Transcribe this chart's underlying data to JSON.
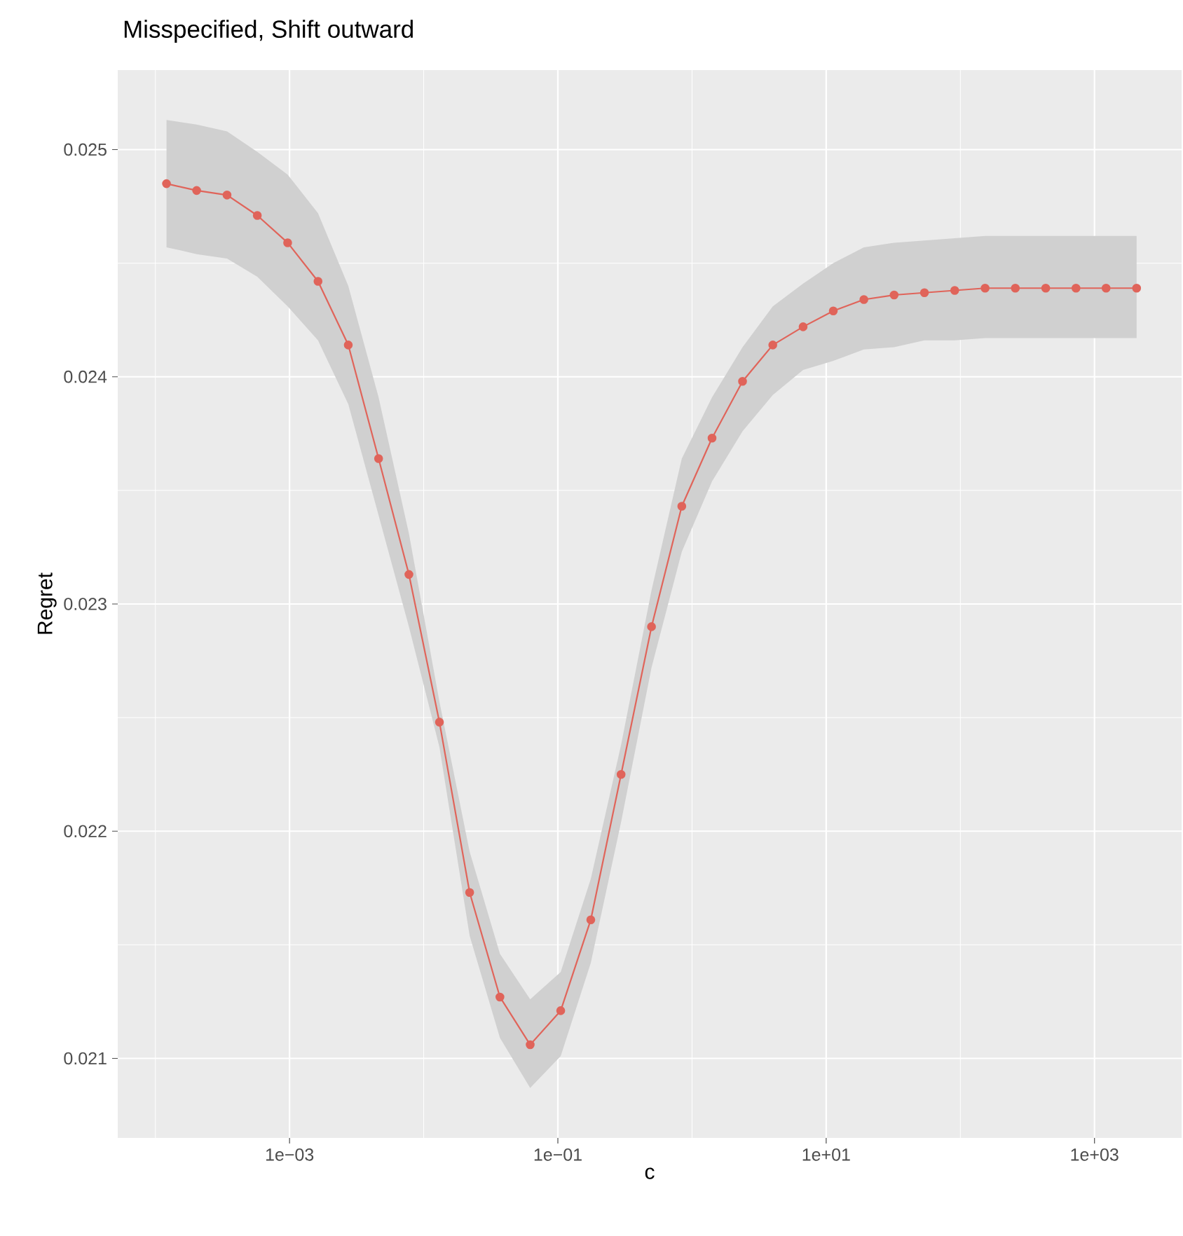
{
  "chart_data": {
    "type": "line",
    "title": "Misspecified, Shift outward",
    "xlabel": "c",
    "ylabel": "Regret",
    "x": [
      0.000121,
      0.000203,
      0.000342,
      0.000575,
      0.000968,
      0.00163,
      0.00274,
      0.00461,
      0.00776,
      0.0131,
      0.022,
      0.037,
      0.0622,
      0.105,
      0.176,
      0.296,
      0.499,
      0.839,
      1.41,
      2.38,
      4.0,
      6.73,
      11.3,
      19.1,
      32.1,
      54.0,
      90.8,
      153,
      257,
      433,
      728,
      1220,
      2060
    ],
    "series": [
      {
        "color": "#e0645a",
        "values": [
          0.02485,
          0.02482,
          0.0248,
          0.02471,
          0.02459,
          0.02442,
          0.02414,
          0.02364,
          0.02313,
          0.02248,
          0.02173,
          0.02127,
          0.02106,
          0.02121,
          0.02161,
          0.02225,
          0.0229,
          0.02343,
          0.02373,
          0.02398,
          0.02414,
          0.02422,
          0.02429,
          0.02434,
          0.02436,
          0.02437,
          0.02438,
          0.02439,
          0.02439,
          0.02439,
          0.02439,
          0.02439,
          0.02439
        ],
        "upper": [
          0.02513,
          0.02511,
          0.02508,
          0.02499,
          0.02489,
          0.02472,
          0.0244,
          0.02391,
          0.02331,
          0.02257,
          0.02191,
          0.02146,
          0.02126,
          0.02138,
          0.02179,
          0.02238,
          0.02306,
          0.02364,
          0.02391,
          0.02413,
          0.02431,
          0.02441,
          0.0245,
          0.02457,
          0.02459,
          0.0246,
          0.02461,
          0.02462,
          0.02462,
          0.02462,
          0.02462,
          0.02462,
          0.02462
        ],
        "lower": [
          0.02457,
          0.02454,
          0.02452,
          0.02444,
          0.02431,
          0.02416,
          0.02388,
          0.02339,
          0.0229,
          0.02237,
          0.02154,
          0.02109,
          0.02087,
          0.02101,
          0.02142,
          0.02204,
          0.02272,
          0.02323,
          0.02354,
          0.02376,
          0.02392,
          0.02403,
          0.02407,
          0.02412,
          0.02413,
          0.02416,
          0.02416,
          0.02417,
          0.02417,
          0.02417,
          0.02417,
          0.02417,
          0.02417
        ]
      }
    ],
    "log": "x",
    "xlim": [
      5.24e-05,
      4460
    ],
    "ylim": [
      0.02065,
      0.02535
    ],
    "xticks": [
      {
        "value": 0.001,
        "label": "1e−03"
      },
      {
        "value": 0.1,
        "label": "1e−01"
      },
      {
        "value": 10,
        "label": "1e+01"
      },
      {
        "value": 1000,
        "label": "1e+03"
      }
    ],
    "yticks": [
      0.021,
      0.022,
      0.023,
      0.024,
      0.025
    ],
    "grid": true,
    "marker": "circle",
    "line_style": "solid"
  }
}
